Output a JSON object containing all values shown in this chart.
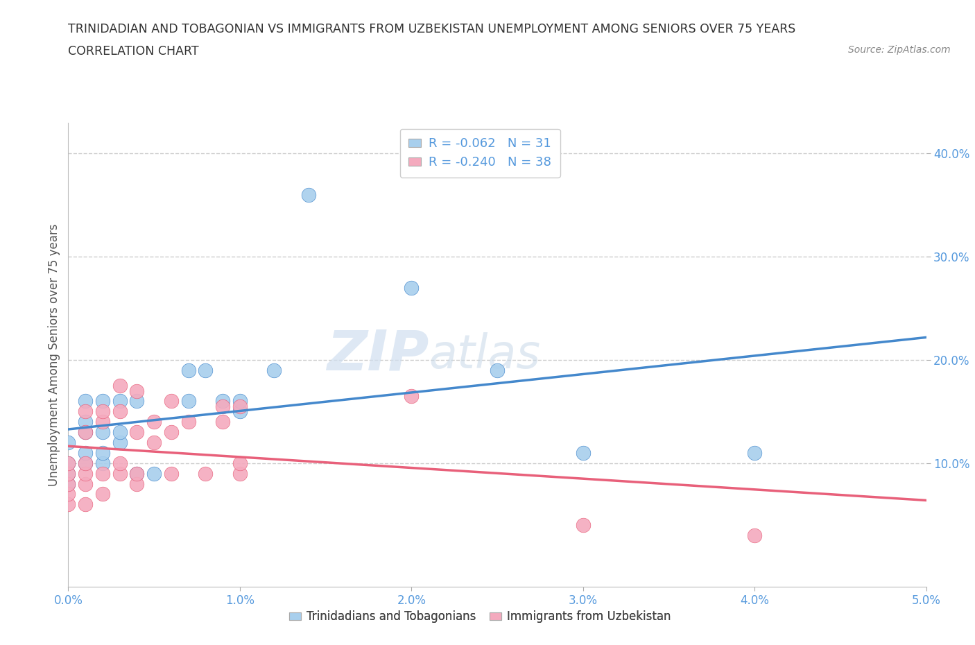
{
  "title_line1": "TRINIDADIAN AND TOBAGONIAN VS IMMIGRANTS FROM UZBEKISTAN UNEMPLOYMENT AMONG SENIORS OVER 75 YEARS",
  "title_line2": "CORRELATION CHART",
  "source_text": "Source: ZipAtlas.com",
  "ylabel": "Unemployment Among Seniors over 75 years",
  "xlim": [
    0.0,
    0.05
  ],
  "ylim": [
    -0.02,
    0.43
  ],
  "xtick_labels": [
    "0.0%",
    "1.0%",
    "2.0%",
    "3.0%",
    "4.0%",
    "5.0%"
  ],
  "xtick_vals": [
    0.0,
    0.01,
    0.02,
    0.03,
    0.04,
    0.05
  ],
  "ytick_labels": [
    "10.0%",
    "20.0%",
    "30.0%",
    "40.0%"
  ],
  "ytick_vals": [
    0.1,
    0.2,
    0.3,
    0.4
  ],
  "blue_color": "#A8CFED",
  "pink_color": "#F4AABE",
  "blue_line_color": "#4488CC",
  "pink_line_color": "#E8607A",
  "watermark_zip": "ZIP",
  "watermark_atlas": "atlas",
  "blue_R": -0.062,
  "blue_N": 31,
  "pink_R": -0.24,
  "pink_N": 38,
  "blue_scatter_x": [
    0.0,
    0.0,
    0.0,
    0.0,
    0.001,
    0.001,
    0.001,
    0.001,
    0.001,
    0.002,
    0.002,
    0.002,
    0.002,
    0.003,
    0.003,
    0.003,
    0.004,
    0.004,
    0.005,
    0.007,
    0.007,
    0.008,
    0.009,
    0.01,
    0.01,
    0.012,
    0.014,
    0.02,
    0.025,
    0.03,
    0.04
  ],
  "blue_scatter_y": [
    0.08,
    0.09,
    0.1,
    0.12,
    0.1,
    0.11,
    0.13,
    0.14,
    0.16,
    0.1,
    0.11,
    0.13,
    0.16,
    0.12,
    0.13,
    0.16,
    0.09,
    0.16,
    0.09,
    0.16,
    0.19,
    0.19,
    0.16,
    0.15,
    0.16,
    0.19,
    0.36,
    0.27,
    0.19,
    0.11,
    0.11
  ],
  "pink_scatter_x": [
    0.0,
    0.0,
    0.0,
    0.0,
    0.0,
    0.001,
    0.001,
    0.001,
    0.001,
    0.001,
    0.001,
    0.002,
    0.002,
    0.002,
    0.002,
    0.003,
    0.003,
    0.003,
    0.003,
    0.004,
    0.004,
    0.004,
    0.004,
    0.005,
    0.005,
    0.006,
    0.006,
    0.006,
    0.007,
    0.008,
    0.009,
    0.009,
    0.01,
    0.01,
    0.01,
    0.02,
    0.03,
    0.04
  ],
  "pink_scatter_y": [
    0.06,
    0.07,
    0.08,
    0.09,
    0.1,
    0.06,
    0.08,
    0.09,
    0.1,
    0.13,
    0.15,
    0.07,
    0.09,
    0.14,
    0.15,
    0.09,
    0.1,
    0.15,
    0.175,
    0.08,
    0.09,
    0.13,
    0.17,
    0.12,
    0.14,
    0.09,
    0.13,
    0.16,
    0.14,
    0.09,
    0.14,
    0.155,
    0.09,
    0.1,
    0.155,
    0.165,
    0.04,
    0.03
  ],
  "grid_color": "#CCCCCC",
  "bg_color": "#FFFFFF",
  "title_color": "#333333",
  "axis_label_color": "#555555",
  "tick_color": "#5599DD"
}
